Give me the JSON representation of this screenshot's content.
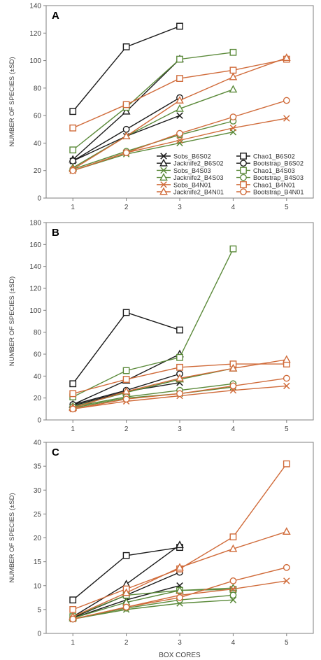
{
  "colors": {
    "B6S02": "#1a1a1a",
    "B4S03": "#5b8a3a",
    "B4N01": "#d06b3a"
  },
  "chart_data": [
    {
      "panel": "A",
      "type": "line",
      "ylabel": "NUMBER OF SPECIES (±SD)",
      "xlabel": "",
      "xlim": [
        0.5,
        5.5
      ],
      "ylim": [
        0,
        140
      ],
      "yticks": [
        0,
        20,
        40,
        60,
        80,
        100,
        120,
        140
      ],
      "xticks": [
        1,
        2,
        3,
        4,
        5
      ],
      "legend": "bottom-right",
      "series": [
        {
          "name": "Sobs_B6S02",
          "group": "B6S02",
          "marker": "x",
          "x": [
            1,
            2,
            3
          ],
          "values": [
            27,
            45,
            60
          ]
        },
        {
          "name": "Chao1_B6S02",
          "group": "B6S02",
          "marker": "square",
          "x": [
            1,
            2,
            3
          ],
          "values": [
            63,
            110,
            125
          ]
        },
        {
          "name": "Jacknife2_B6S02",
          "group": "B6S02",
          "marker": "triangle",
          "x": [
            1,
            2,
            3
          ],
          "values": [
            28,
            63,
            101
          ]
        },
        {
          "name": "Bootstrap_B6S02",
          "group": "B6S02",
          "marker": "circle",
          "x": [
            1,
            2,
            3
          ],
          "values": [
            27,
            50,
            73
          ]
        },
        {
          "name": "Sobs_B4S03",
          "group": "B4S03",
          "marker": "x",
          "x": [
            1,
            2,
            3,
            4
          ],
          "values": [
            20,
            32,
            40,
            48
          ]
        },
        {
          "name": "Chao1_B4S03",
          "group": "B4S03",
          "marker": "square",
          "x": [
            1,
            2,
            3,
            4
          ],
          "values": [
            35,
            66,
            101,
            106
          ]
        },
        {
          "name": "Jacknife2_B4S03",
          "group": "B4S03",
          "marker": "triangle",
          "x": [
            1,
            2,
            3,
            4
          ],
          "values": [
            22,
            45,
            65,
            79
          ]
        },
        {
          "name": "Bootstrap_B4S03",
          "group": "B4S03",
          "marker": "circle",
          "x": [
            1,
            2,
            3,
            4
          ],
          "values": [
            21,
            34,
            46,
            56
          ]
        },
        {
          "name": "Sobs_B4N01",
          "group": "B4N01",
          "marker": "x",
          "x": [
            1,
            2,
            3,
            4,
            5
          ],
          "values": [
            20,
            33,
            42,
            51,
            58
          ]
        },
        {
          "name": "Chao1_B4N01",
          "group": "B4N01",
          "marker": "square",
          "x": [
            1,
            2,
            3,
            4,
            5
          ],
          "values": [
            51,
            68,
            87,
            93,
            101
          ]
        },
        {
          "name": "Jacknife2_B4N01",
          "group": "B4N01",
          "marker": "triangle",
          "x": [
            1,
            2,
            3,
            4,
            5
          ],
          "values": [
            21,
            45,
            71,
            88,
            102
          ]
        },
        {
          "name": "Bootstrap_B4N01",
          "group": "B4N01",
          "marker": "circle",
          "x": [
            1,
            2,
            3,
            4,
            5
          ],
          "values": [
            20,
            33,
            47,
            59,
            71
          ]
        }
      ]
    },
    {
      "panel": "B",
      "type": "line",
      "ylabel": "NUMBER OF SPECIES (±SD)",
      "xlabel": "",
      "xlim": [
        0.5,
        5.5
      ],
      "ylim": [
        0,
        180
      ],
      "yticks": [
        0,
        20,
        40,
        60,
        80,
        100,
        120,
        140,
        160,
        180
      ],
      "xticks": [
        1,
        2,
        3,
        4,
        5
      ],
      "series": [
        {
          "name": "Sobs_B6S02",
          "group": "B6S02",
          "marker": "x",
          "x": [
            1,
            2,
            3
          ],
          "values": [
            13,
            26,
            34
          ]
        },
        {
          "name": "Chao1_B6S02",
          "group": "B6S02",
          "marker": "square",
          "x": [
            1,
            2,
            3
          ],
          "values": [
            33,
            98,
            82
          ]
        },
        {
          "name": "Jacknife2_B6S02",
          "group": "B6S02",
          "marker": "triangle",
          "x": [
            1,
            2,
            3
          ],
          "values": [
            14,
            36,
            60
          ]
        },
        {
          "name": "Bootstrap_B6S02",
          "group": "B6S02",
          "marker": "circle",
          "x": [
            1,
            2,
            3
          ],
          "values": [
            14,
            27,
            42
          ]
        },
        {
          "name": "Sobs_B4S03",
          "group": "B4S03",
          "marker": "x",
          "x": [
            1,
            2,
            3,
            4
          ],
          "values": [
            11,
            20,
            24,
            30
          ]
        },
        {
          "name": "Chao1_B4S03",
          "group": "B4S03",
          "marker": "square",
          "x": [
            1,
            2,
            3,
            4
          ],
          "values": [
            21,
            45,
            57,
            156
          ]
        },
        {
          "name": "Jacknife2_B4S03",
          "group": "B4S03",
          "marker": "triangle",
          "x": [
            1,
            2,
            3,
            4
          ],
          "values": [
            12,
            25,
            37,
            47
          ]
        },
        {
          "name": "Bootstrap_B4S03",
          "group": "B4S03",
          "marker": "circle",
          "x": [
            1,
            2,
            3,
            4
          ],
          "values": [
            12,
            21,
            27,
            33
          ]
        },
        {
          "name": "Sobs_B4N01",
          "group": "B4N01",
          "marker": "x",
          "x": [
            1,
            2,
            3,
            4,
            5
          ],
          "values": [
            10,
            17,
            22,
            27,
            31
          ]
        },
        {
          "name": "Chao1_B4N01",
          "group": "B4N01",
          "marker": "square",
          "x": [
            1,
            2,
            3,
            4,
            5
          ],
          "values": [
            24,
            37,
            48,
            51,
            51
          ]
        },
        {
          "name": "Jacknife2_B4N01",
          "group": "B4N01",
          "marker": "triangle",
          "x": [
            1,
            2,
            3,
            4,
            5
          ],
          "values": [
            11,
            26,
            38,
            47,
            55
          ]
        },
        {
          "name": "Bootstrap_B4N01",
          "group": "B4N01",
          "marker": "circle",
          "x": [
            1,
            2,
            3,
            4,
            5
          ],
          "values": [
            10,
            19,
            24,
            31,
            38
          ]
        }
      ]
    },
    {
      "panel": "C",
      "type": "line",
      "ylabel": "NUMBER OF SPECIES (±SD)",
      "xlabel": "BOX CORES",
      "xlim": [
        0.5,
        5.5
      ],
      "ylim": [
        0,
        40
      ],
      "yticks": [
        0,
        5,
        10,
        15,
        20,
        25,
        30,
        35,
        40
      ],
      "xticks": [
        1,
        2,
        3,
        4,
        5
      ],
      "series": [
        {
          "name": "Sobs_B6S02",
          "group": "B6S02",
          "marker": "x",
          "x": [
            1,
            2,
            3
          ],
          "values": [
            3.2,
            7,
            10
          ]
        },
        {
          "name": "Chao1_B6S02",
          "group": "B6S02",
          "marker": "square",
          "x": [
            1,
            2,
            3
          ],
          "values": [
            7,
            16.3,
            18
          ]
        },
        {
          "name": "Jacknife2_B6S02",
          "group": "B6S02",
          "marker": "triangle",
          "x": [
            1,
            2,
            3
          ],
          "values": [
            3.5,
            10.3,
            18.5
          ]
        },
        {
          "name": "Bootstrap_B6S02",
          "group": "B6S02",
          "marker": "circle",
          "x": [
            1,
            2,
            3
          ],
          "values": [
            3.3,
            8,
            12.8
          ]
        },
        {
          "name": "Sobs_B4S03",
          "group": "B4S03",
          "marker": "x",
          "x": [
            1,
            2,
            3,
            4
          ],
          "values": [
            3,
            5,
            6.3,
            7
          ]
        },
        {
          "name": "Chao1_B4S03",
          "group": "B4S03",
          "marker": "square",
          "x": [
            1,
            2,
            3,
            4
          ],
          "values": [
            3.5,
            8,
            9,
            9.2
          ]
        },
        {
          "name": "Jacknife2_B4S03",
          "group": "B4S03",
          "marker": "triangle",
          "x": [
            1,
            2,
            3,
            4
          ],
          "values": [
            3.2,
            6.5,
            9,
            9.5
          ]
        },
        {
          "name": "Bootstrap_B4S03",
          "group": "B4S03",
          "marker": "circle",
          "x": [
            1,
            2,
            3,
            4
          ],
          "values": [
            3,
            5.3,
            7,
            8
          ]
        },
        {
          "name": "Sobs_B4N01",
          "group": "B4N01",
          "marker": "x",
          "x": [
            1,
            2,
            3,
            4,
            5
          ],
          "values": [
            3,
            5.5,
            8,
            9.3,
            11
          ]
        },
        {
          "name": "Chao1_B4N01",
          "group": "B4N01",
          "marker": "square",
          "x": [
            1,
            2,
            3,
            4,
            5
          ],
          "values": [
            5,
            9.3,
            13.5,
            20.2,
            35.5
          ]
        },
        {
          "name": "Jacknife2_B4N01",
          "group": "B4N01",
          "marker": "triangle",
          "x": [
            1,
            2,
            3,
            4,
            5
          ],
          "values": [
            3.5,
            8.5,
            13.8,
            17.7,
            21.3
          ]
        },
        {
          "name": "Bootstrap_B4N01",
          "group": "B4N01",
          "marker": "circle",
          "x": [
            1,
            2,
            3,
            4,
            5
          ],
          "values": [
            3,
            5.5,
            7.5,
            11,
            13.8
          ]
        }
      ]
    }
  ]
}
